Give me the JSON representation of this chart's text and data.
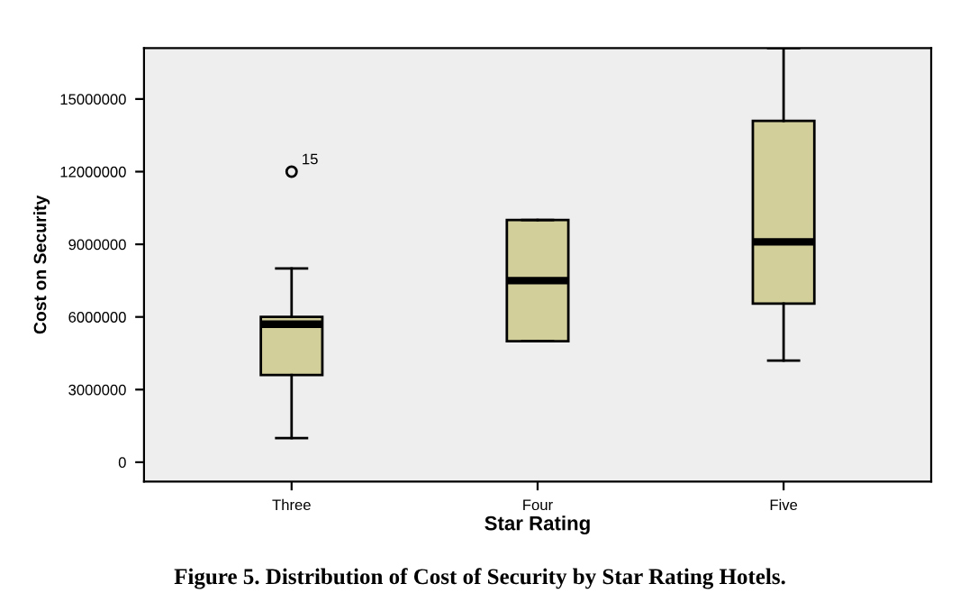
{
  "chart_data": {
    "type": "box",
    "title": "Figure 5. Distribution of Cost of Security by Star Rating Hotels.",
    "xlabel": "Star Rating",
    "ylabel": "Cost on Security",
    "categories": [
      "Three",
      "Four",
      "Five"
    ],
    "color": "#d3cf9a",
    "boxes": [
      {
        "low": 1000000,
        "q1": 3600000,
        "median": 5700000,
        "q3": 6000000,
        "high": 8000000,
        "outliers": [
          12000000
        ]
      },
      {
        "low": 5000000,
        "q1": 5000000,
        "median": 7500000,
        "q3": 10000000,
        "high": 10000000
      },
      {
        "low": 4200000,
        "q1": 6550000,
        "median": 9100000,
        "q3": 14100000,
        "high": 17100000
      }
    ],
    "annotations": [
      "15"
    ],
    "ylim": [
      -800000,
      17100000
    ],
    "yticks": [
      0,
      3000000,
      6000000,
      9000000,
      12000000,
      15000000
    ],
    "grid": false
  }
}
